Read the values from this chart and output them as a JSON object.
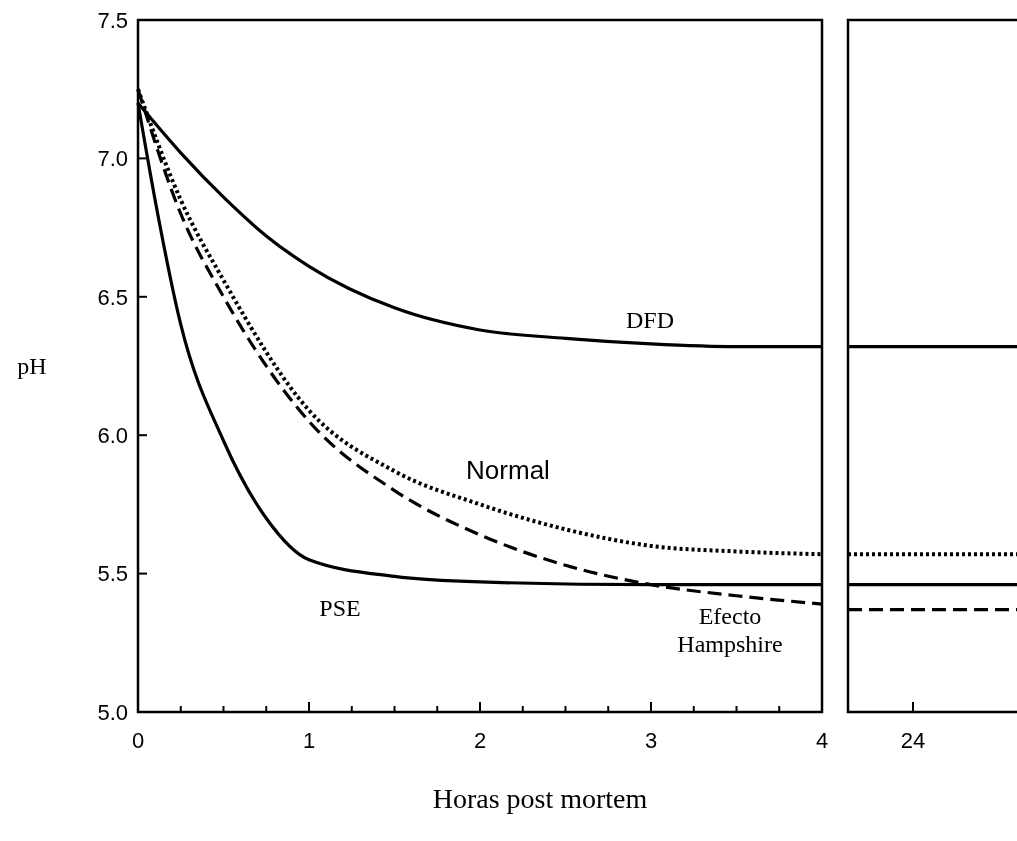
{
  "chart_data": [
    {
      "type": "line",
      "ylabel": "pH",
      "xlabel": "Horas post mortem",
      "xlim": [
        0,
        4
      ],
      "ylim": [
        5,
        7.5
      ],
      "xticks": [
        0,
        {
          "value": 0.25,
          "label": null
        },
        {
          "value": 0.5,
          "label": null
        },
        {
          "value": 0.75,
          "label": null
        },
        1,
        {
          "value": 1.25,
          "label": null
        },
        {
          "value": 1.5,
          "label": null
        },
        {
          "value": 1.75,
          "label": null
        },
        2,
        {
          "value": 2.25,
          "label": null
        },
        {
          "value": 2.5,
          "label": null
        },
        {
          "value": 2.75,
          "label": null
        },
        3,
        {
          "value": 3.25,
          "label": null
        },
        {
          "value": 3.5,
          "label": null
        },
        {
          "value": 3.75,
          "label": null
        },
        4
      ],
      "yticks": [
        {
          "value": 5,
          "label": "5.0"
        },
        5.5,
        {
          "value": 6,
          "label": "6.0"
        },
        6.5,
        {
          "value": 7,
          "label": "7.0"
        },
        7.5
      ],
      "series": [
        {
          "name": "DFD",
          "color": "#000000",
          "line_style": "solid",
          "x": [
            0,
            0.25,
            0.5,
            0.75,
            1,
            1.5,
            2,
            2.5,
            3,
            3.5,
            4
          ],
          "values": [
            7.2,
            7.02,
            6.86,
            6.72,
            6.61,
            6.46,
            6.38,
            6.35,
            6.33,
            6.32,
            6.32
          ]
        },
        {
          "name": "Normal",
          "color": "#000000",
          "line_style": "dotted",
          "x": [
            0,
            0.25,
            0.5,
            1,
            1.5,
            2,
            2.5,
            3,
            3.5,
            4
          ],
          "values": [
            7.25,
            6.85,
            6.56,
            6.09,
            5.87,
            5.75,
            5.66,
            5.6,
            5.58,
            5.57
          ]
        },
        {
          "name": "Efecto\nHampshire",
          "color": "#000000",
          "line_style": "dashed",
          "x": [
            0,
            0.25,
            0.5,
            1,
            1.5,
            2,
            2.5,
            3,
            3.5,
            4
          ],
          "values": [
            7.25,
            6.8,
            6.5,
            6.05,
            5.8,
            5.64,
            5.53,
            5.46,
            5.42,
            5.39
          ]
        },
        {
          "name": "PSE",
          "color": "#000000",
          "line_style": "solid",
          "x": [
            0,
            0.1,
            0.25,
            0.5,
            0.75,
            1,
            1.5,
            2,
            3,
            4
          ],
          "values": [
            7.2,
            6.85,
            6.4,
            5.98,
            5.7,
            5.55,
            5.49,
            5.47,
            5.46,
            5.46
          ]
        }
      ]
    },
    {
      "type": "line",
      "categories": [
        "24"
      ],
      "ylim": [
        5,
        7.5
      ],
      "tick_labels": "x",
      "ref_lines": [
        {
          "axis": "y",
          "value": 6.32,
          "color": "#000000",
          "line_style": "solid"
        },
        {
          "axis": "y",
          "value": 5.57,
          "color": "#000000",
          "line_style": "dotted"
        },
        {
          "axis": "y",
          "value": 5.37,
          "color": "#000000",
          "line_style": "dashed"
        },
        {
          "axis": "y",
          "value": 5.46,
          "color": "#000000",
          "line_style": "solid"
        }
      ]
    }
  ]
}
